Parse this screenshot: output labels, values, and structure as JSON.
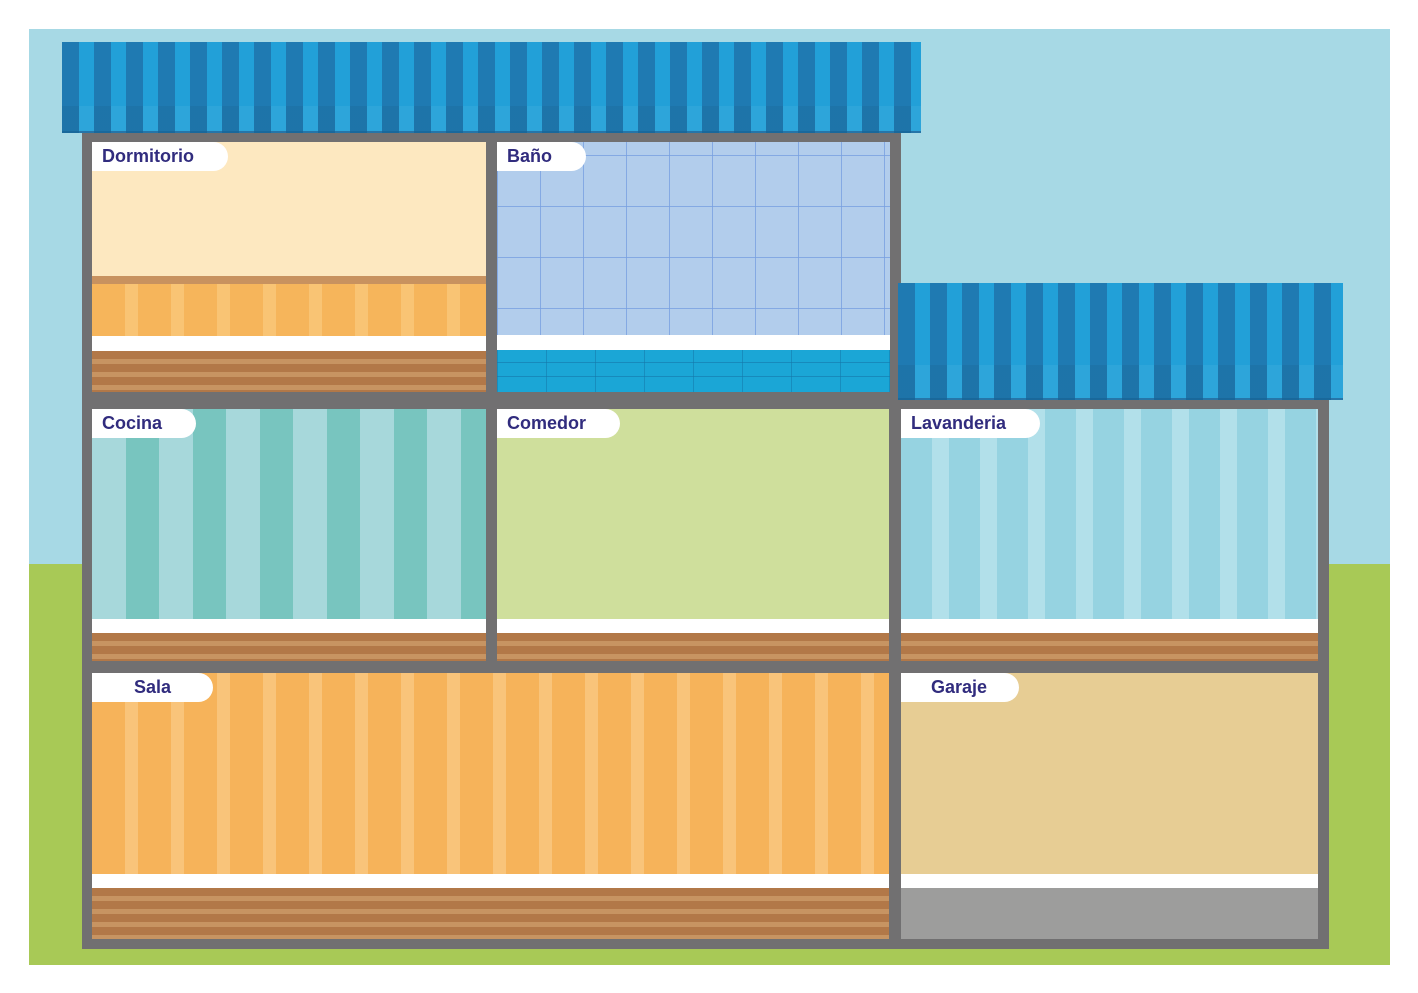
{
  "rooms": {
    "dormitorio": "Dormitorio",
    "bano": "Baño",
    "cocina": "Cocina",
    "comedor": "Comedor",
    "lavanderia": "Lavanderia",
    "sala": "Sala",
    "garaje": "Garaje"
  },
  "colors": {
    "sky": "#a7d9e5",
    "grass": "#a8c956",
    "roof": "#1f7ab2",
    "frame": "#717071",
    "label_text": "#312c7e"
  }
}
